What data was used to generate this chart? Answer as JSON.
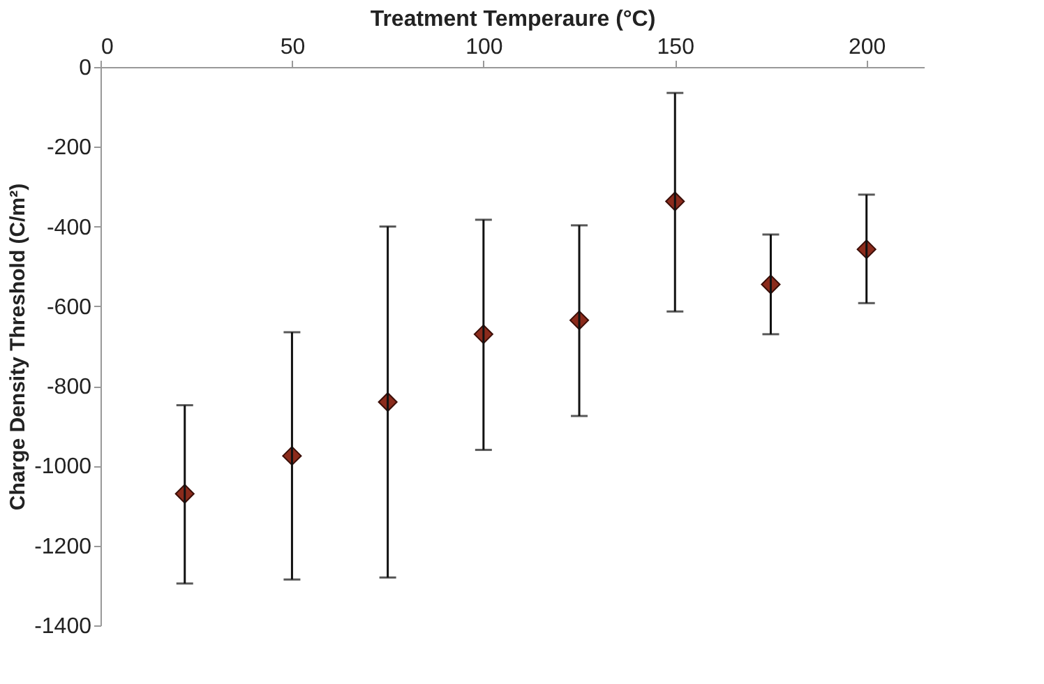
{
  "chart_data": {
    "type": "scatter",
    "xlabel": "Treatment Temperaure (°C)",
    "ylabel": "Charge Density Threshold (C/m²)",
    "x": [
      22,
      50,
      75,
      100,
      125,
      150,
      175,
      200
    ],
    "series": [
      {
        "color": "#8b2b1c",
        "values": [
          -1070,
          -975,
          -840,
          -670,
          -635,
          -337,
          -545,
          -457
        ],
        "errors": [
          [
            -1295,
            -848
          ],
          [
            -1285,
            -665
          ],
          [
            -1280,
            -400
          ],
          [
            -960,
            -383
          ],
          [
            -875,
            -397
          ],
          [
            -613,
            -65
          ],
          [
            -670,
            -420
          ],
          [
            -592,
            -320
          ]
        ]
      }
    ],
    "xlim": [
      0,
      215
    ],
    "xticks": [
      0,
      50,
      100,
      150,
      200
    ],
    "ylim": [
      -1400,
      0
    ],
    "yticks": [
      0,
      -200,
      -400,
      -600,
      -800,
      -1000,
      -1200,
      -1400
    ],
    "marker": "diamond",
    "grid": false
  }
}
